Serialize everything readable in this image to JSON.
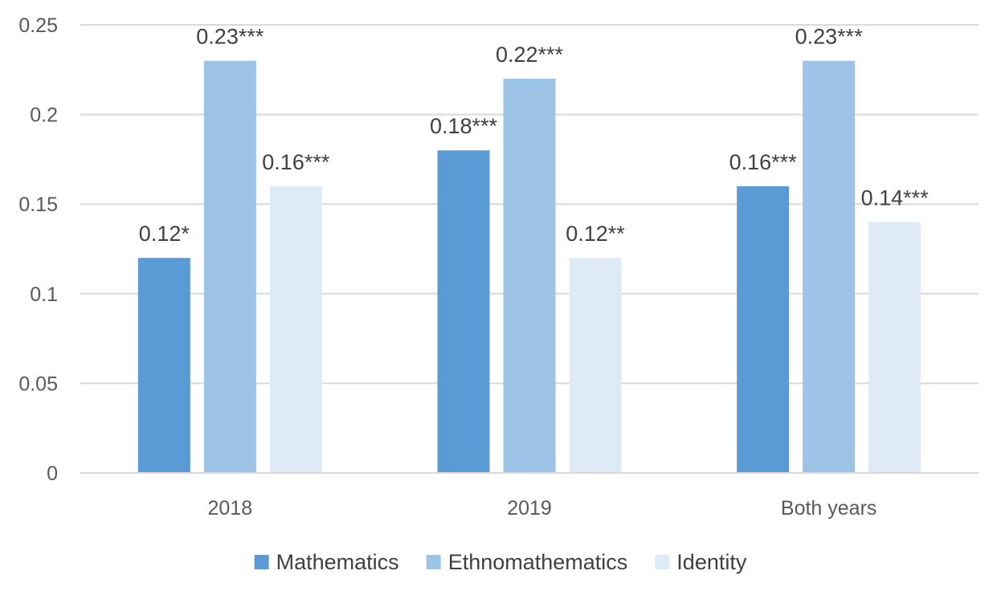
{
  "chart_data": {
    "type": "bar",
    "title": "",
    "xlabel": "",
    "ylabel": "",
    "categories": [
      "2018",
      "2019",
      "Both years"
    ],
    "series": [
      {
        "name": "Mathematics",
        "color": "#5b9bd5",
        "values": [
          0.12,
          0.18,
          0.16
        ],
        "labels": [
          "0.12*",
          "0.18***",
          "0.16***"
        ]
      },
      {
        "name": "Ethnomathematics",
        "color": "#9dc3e6",
        "values": [
          0.23,
          0.22,
          0.23
        ],
        "labels": [
          "0.23***",
          "0.22***",
          "0.23***"
        ]
      },
      {
        "name": "Identity",
        "color": "#deebf7",
        "values": [
          0.16,
          0.12,
          0.14
        ],
        "labels": [
          "0.16***",
          "0.12**",
          "0.14***"
        ]
      }
    ],
    "yticks": [
      "0",
      "0.05",
      "0.1",
      "0.15",
      "0.2",
      "0.25"
    ],
    "ylim": [
      0,
      0.25
    ],
    "grid": true,
    "legend_position": "bottom"
  }
}
